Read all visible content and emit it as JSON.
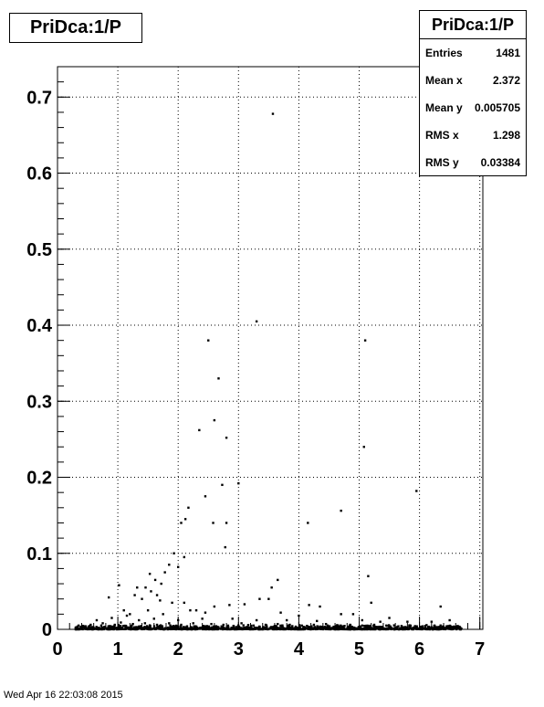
{
  "title": "PriDca:1/P",
  "stats": {
    "title": "PriDca:1/P",
    "rows": [
      {
        "label": "Entries",
        "value": "1481"
      },
      {
        "label": "Mean x",
        "value": "2.372"
      },
      {
        "label": "Mean y",
        "value": "0.005705"
      },
      {
        "label": "RMS x",
        "value": "1.298"
      },
      {
        "label": "RMS y",
        "value": "0.03384"
      }
    ]
  },
  "footer": "Wed Apr 16 22:03:08 2015",
  "chart_data": {
    "type": "scatter",
    "title": "PriDca:1/P",
    "xlabel": "",
    "ylabel": "",
    "xlim": [
      0,
      7.05
    ],
    "ylim": [
      0,
      0.74
    ],
    "grid": true,
    "x_ticks": [
      0,
      1,
      2,
      3,
      4,
      5,
      6,
      7
    ],
    "y_ticks": [
      0,
      0.1,
      0.2,
      0.3,
      0.4,
      0.5,
      0.6,
      0.7
    ],
    "x_tick_labels": [
      "0",
      "1",
      "2",
      "3",
      "4",
      "5",
      "6",
      "7"
    ],
    "y_tick_labels": [
      "0",
      "0.1",
      "0.2",
      "0.3",
      "0.4",
      "0.5",
      "0.6",
      "0.7"
    ],
    "points": [
      [
        3.57,
        0.678
      ],
      [
        3.3,
        0.405
      ],
      [
        2.5,
        0.38
      ],
      [
        5.1,
        0.38
      ],
      [
        2.67,
        0.33
      ],
      [
        2.6,
        0.275
      ],
      [
        2.35,
        0.262
      ],
      [
        2.8,
        0.252
      ],
      [
        5.08,
        0.24
      ],
      [
        2.73,
        0.19
      ],
      [
        3.0,
        0.192
      ],
      [
        5.95,
        0.182
      ],
      [
        2.17,
        0.16
      ],
      [
        2.45,
        0.175
      ],
      [
        2.12,
        0.145
      ],
      [
        4.7,
        0.156
      ],
      [
        2.05,
        0.14
      ],
      [
        2.58,
        0.14
      ],
      [
        2.8,
        0.14
      ],
      [
        4.15,
        0.14
      ],
      [
        2.78,
        0.108
      ],
      [
        1.93,
        0.1
      ],
      [
        2.1,
        0.095
      ],
      [
        1.85,
        0.085
      ],
      [
        2.0,
        0.082
      ],
      [
        1.78,
        0.075
      ],
      [
        1.53,
        0.073
      ],
      [
        1.62,
        0.065
      ],
      [
        1.72,
        0.06
      ],
      [
        1.02,
        0.058
      ],
      [
        1.32,
        0.055
      ],
      [
        1.46,
        0.055
      ],
      [
        1.55,
        0.05
      ],
      [
        1.65,
        0.045
      ],
      [
        1.28,
        0.045
      ],
      [
        1.4,
        0.04
      ],
      [
        1.7,
        0.038
      ],
      [
        1.9,
        0.035
      ],
      [
        2.1,
        0.035
      ],
      [
        3.65,
        0.065
      ],
      [
        3.55,
        0.055
      ],
      [
        5.15,
        0.07
      ],
      [
        3.35,
        0.04
      ],
      [
        3.5,
        0.04
      ],
      [
        3.1,
        0.033
      ],
      [
        5.2,
        0.035
      ],
      [
        4.17,
        0.032
      ],
      [
        4.35,
        0.03
      ],
      [
        0.85,
        0.042
      ],
      [
        1.1,
        0.025
      ],
      [
        1.2,
        0.02
      ],
      [
        1.5,
        0.025
      ],
      [
        1.75,
        0.02
      ],
      [
        2.2,
        0.025
      ],
      [
        2.6,
        0.03
      ],
      [
        2.85,
        0.032
      ],
      [
        6.35,
        0.03
      ],
      [
        2.3,
        0.025
      ],
      [
        2.45,
        0.022
      ],
      [
        3.7,
        0.022
      ],
      [
        4.0,
        0.018
      ],
      [
        4.7,
        0.02
      ],
      [
        4.9,
        0.02
      ],
      [
        5.5,
        0.015
      ],
      [
        0.65,
        0.012
      ],
      [
        0.9,
        0.015
      ],
      [
        1.15,
        0.018
      ],
      [
        1.35,
        0.012
      ],
      [
        1.6,
        0.014
      ],
      [
        2.0,
        0.012
      ],
      [
        2.4,
        0.014
      ],
      [
        2.9,
        0.014
      ],
      [
        3.3,
        0.012
      ],
      [
        3.8,
        0.012
      ],
      [
        4.3,
        0.011
      ],
      [
        5.05,
        0.012
      ],
      [
        5.35,
        0.01
      ],
      [
        5.8,
        0.01
      ],
      [
        6.2,
        0.01
      ],
      [
        6.5,
        0.012
      ],
      [
        0.35,
        0.005
      ],
      [
        0.45,
        0.004
      ],
      [
        0.55,
        0.006
      ],
      [
        0.75,
        0.008
      ],
      [
        0.95,
        0.006
      ],
      [
        1.05,
        0.009
      ],
      [
        1.25,
        0.007
      ],
      [
        1.45,
        0.008
      ],
      [
        1.65,
        0.006
      ],
      [
        1.85,
        0.008
      ],
      [
        2.05,
        0.006
      ],
      [
        2.25,
        0.008
      ],
      [
        2.55,
        0.007
      ],
      [
        2.75,
        0.006
      ],
      [
        3.05,
        0.008
      ],
      [
        3.25,
        0.005
      ],
      [
        3.45,
        0.006
      ],
      [
        3.65,
        0.007
      ],
      [
        3.85,
        0.006
      ],
      [
        4.05,
        0.005
      ],
      [
        4.25,
        0.006
      ],
      [
        4.45,
        0.007
      ],
      [
        4.65,
        0.005
      ],
      [
        4.85,
        0.006
      ],
      [
        5.05,
        0.005
      ],
      [
        5.25,
        0.006
      ],
      [
        5.45,
        0.005
      ],
      [
        5.65,
        0.004
      ],
      [
        5.85,
        0.005
      ],
      [
        6.05,
        0.004
      ],
      [
        6.25,
        0.005
      ],
      [
        6.45,
        0.004
      ],
      [
        6.6,
        0.003
      ],
      [
        0.3,
        0.002
      ],
      [
        6.55,
        0.002
      ]
    ],
    "dense_band": {
      "x_range": [
        0.3,
        6.7
      ],
      "y_range": [
        0,
        0.006
      ],
      "count": 1300
    }
  }
}
